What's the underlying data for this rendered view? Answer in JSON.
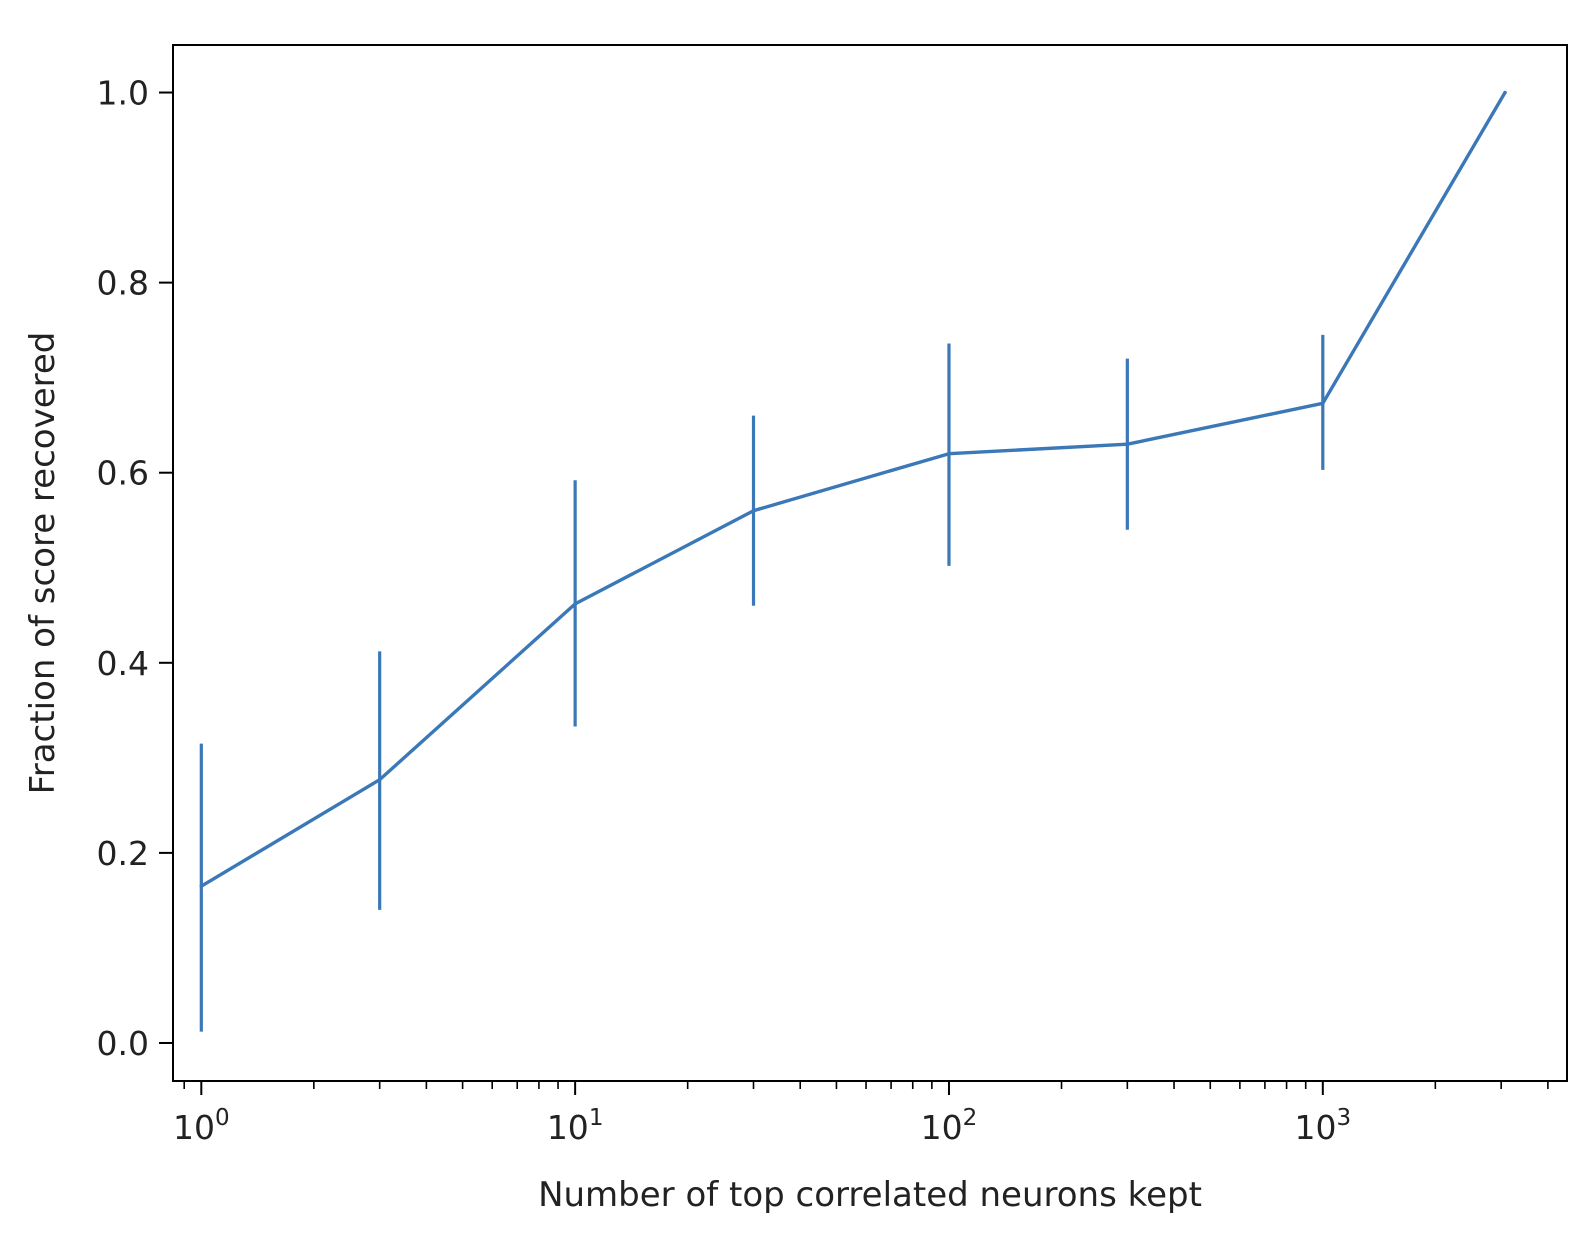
{
  "chart_data": {
    "type": "line",
    "xlabel": "Number of top correlated neurons kept",
    "ylabel": "Fraction of score recovered",
    "xscale": "log",
    "xlim": [
      0.84,
      4500
    ],
    "ylim": [
      -0.04,
      1.05
    ],
    "grid": false,
    "legend": "none",
    "color": "#3b78b8",
    "x_ticks": [
      {
        "value": 1,
        "base": "10",
        "exp": "0"
      },
      {
        "value": 10,
        "base": "10",
        "exp": "1"
      },
      {
        "value": 100,
        "base": "10",
        "exp": "2"
      },
      {
        "value": 1000,
        "base": "10",
        "exp": "3"
      }
    ],
    "y_ticks": [
      {
        "value": 0.0,
        "label": "0.0"
      },
      {
        "value": 0.2,
        "label": "0.2"
      },
      {
        "value": 0.4,
        "label": "0.4"
      },
      {
        "value": 0.6,
        "label": "0.6"
      },
      {
        "value": 0.8,
        "label": "0.8"
      },
      {
        "value": 1.0,
        "label": "1.0"
      }
    ],
    "series": [
      {
        "x": [
          1,
          3,
          10,
          30,
          100,
          300,
          1000,
          3072
        ],
        "y": [
          0.165,
          0.277,
          0.462,
          0.56,
          0.62,
          0.63,
          0.673,
          1.0
        ],
        "err_low": [
          0.012,
          0.14,
          0.333,
          0.46,
          0.502,
          0.54,
          0.603,
          1.0
        ],
        "err_high": [
          0.315,
          0.412,
          0.592,
          0.66,
          0.736,
          0.72,
          0.745,
          1.0
        ]
      }
    ]
  }
}
